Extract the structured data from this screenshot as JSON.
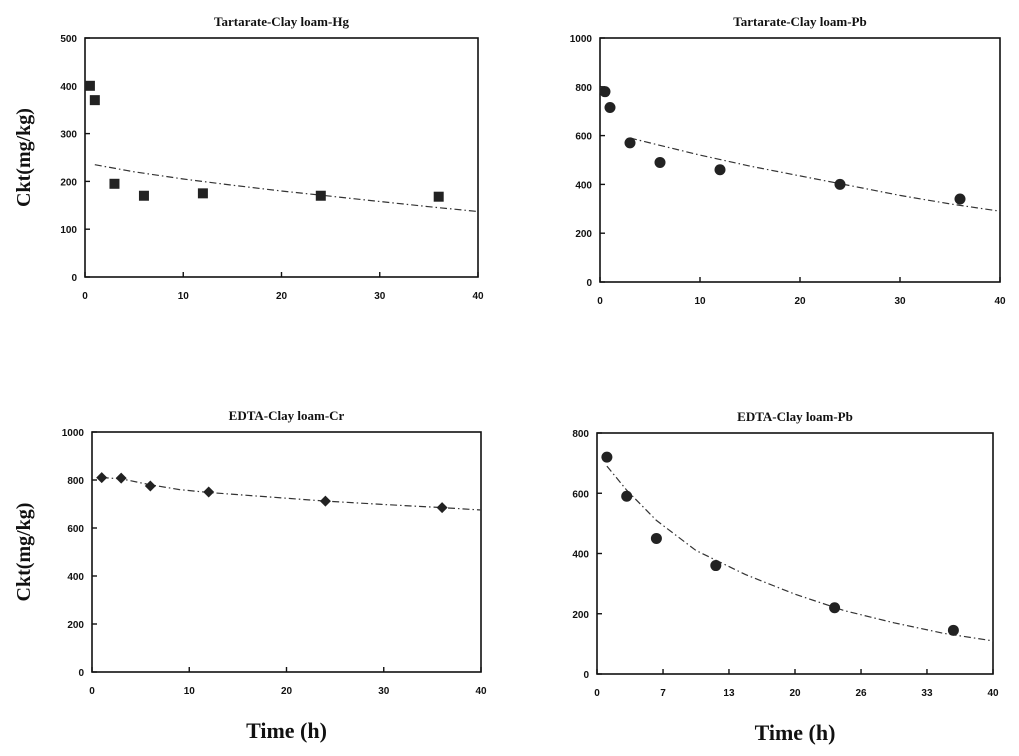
{
  "chart_data": [
    {
      "type": "scatter",
      "title": "Tartarate-Clay loam-Hg",
      "ylabel": "Ckt(mg/kg)",
      "xlabel": "",
      "xlim": [
        0,
        40
      ],
      "ylim": [
        0,
        500
      ],
      "xticks": [
        "0",
        "10",
        "20",
        "30",
        "40"
      ],
      "yticks": [
        "0",
        "100",
        "200",
        "300",
        "400",
        "500"
      ],
      "marker": "square",
      "points": {
        "x": [
          0.5,
          1,
          3,
          6,
          12,
          24,
          36
        ],
        "y": [
          400,
          370,
          195,
          170,
          175,
          170,
          168
        ]
      },
      "fit": {
        "x": [
          1,
          5,
          10,
          15,
          20,
          25,
          30,
          35,
          40
        ],
        "y": [
          235,
          220,
          205,
          192,
          180,
          169,
          158,
          147,
          137
        ]
      }
    },
    {
      "type": "scatter",
      "title": "Tartarate-Clay loam-Pb",
      "ylabel": "",
      "xlabel": "",
      "xlim": [
        0,
        40
      ],
      "ylim": [
        0,
        1000
      ],
      "xticks": [
        "0",
        "10",
        "20",
        "30",
        "40"
      ],
      "yticks": [
        "0",
        "200",
        "400",
        "600",
        "800",
        "1000"
      ],
      "marker": "circle",
      "points": {
        "x": [
          0.5,
          1,
          3,
          6,
          12,
          24,
          36
        ],
        "y": [
          780,
          715,
          570,
          490,
          460,
          400,
          340
        ]
      },
      "fit": {
        "x": [
          3,
          7,
          10,
          15,
          20,
          25,
          30,
          35,
          40
        ],
        "y": [
          590,
          550,
          520,
          475,
          435,
          395,
          355,
          320,
          290
        ]
      }
    },
    {
      "type": "scatter",
      "title": "EDTA-Clay loam-Cr",
      "ylabel": "Ckt(mg/kg)",
      "xlabel": "Time (h)",
      "xlim": [
        0,
        40
      ],
      "ylim": [
        0,
        1000
      ],
      "xticks": [
        "0",
        "10",
        "20",
        "30",
        "40"
      ],
      "yticks": [
        "0",
        "200",
        "400",
        "600",
        "800",
        "1000"
      ],
      "marker": "diamond",
      "points": {
        "x": [
          1,
          3,
          6,
          12,
          24,
          36
        ],
        "y": [
          810,
          808,
          775,
          750,
          712,
          685
        ]
      },
      "fit": {
        "x": [
          1,
          3,
          6,
          9,
          12,
          18,
          24,
          30,
          36,
          40
        ],
        "y": [
          810,
          805,
          780,
          760,
          748,
          730,
          712,
          698,
          685,
          675
        ]
      }
    },
    {
      "type": "scatter",
      "title": "EDTA-Clay loam-Pb",
      "ylabel": "",
      "xlabel": "Time (h)",
      "xlim": [
        0,
        40
      ],
      "ylim": [
        0,
        800
      ],
      "xticks": [
        "0",
        "7",
        "13",
        "20",
        "26",
        "33",
        "40"
      ],
      "xtick_values": [
        0,
        6.67,
        13.33,
        20,
        26.67,
        33.33,
        40
      ],
      "yticks": [
        "0",
        "200",
        "400",
        "600",
        "800"
      ],
      "marker": "circle",
      "points": {
        "x": [
          1,
          3,
          6,
          12,
          24,
          36
        ],
        "y": [
          720,
          590,
          450,
          360,
          220,
          145
        ]
      },
      "fit": {
        "x": [
          1,
          3,
          6,
          10,
          15,
          20,
          25,
          30,
          35,
          40
        ],
        "y": [
          690,
          610,
          510,
          410,
          330,
          265,
          210,
          170,
          135,
          110
        ]
      }
    }
  ]
}
